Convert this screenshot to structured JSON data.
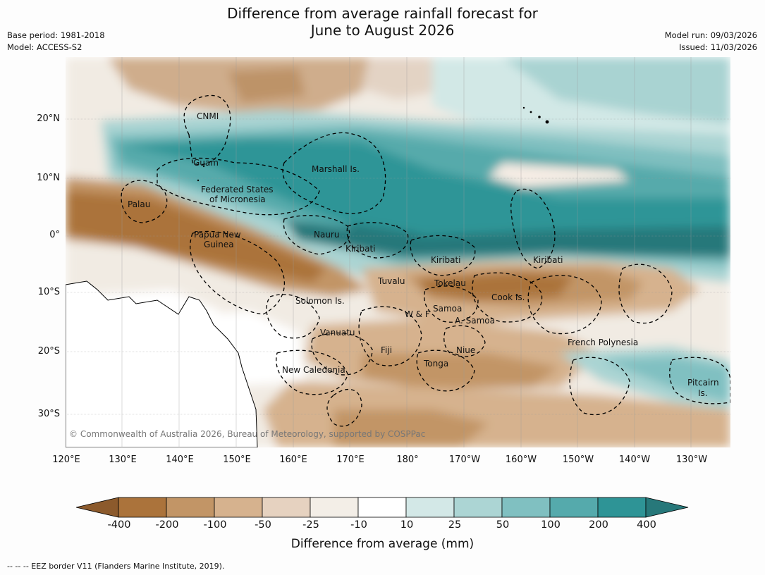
{
  "title": {
    "line1": "Difference from average rainfall forecast for",
    "line2": "June to August 2026"
  },
  "meta_left": {
    "base_period": "Base period: 1981-2018",
    "model": "Model: ACCESS-S2"
  },
  "meta_right": {
    "model_run": "Model run: 09/03/2026",
    "issued": "Issued: 11/03/2026"
  },
  "lat_labels": [
    "20°N",
    "10°N",
    "0°",
    "10°S",
    "20°S",
    "30°S"
  ],
  "lon_labels": [
    "120°E",
    "130°E",
    "140°E",
    "150°E",
    "160°E",
    "170°E",
    "180°",
    "170°W",
    "160°W",
    "150°W",
    "140°W",
    "130°W"
  ],
  "regions": {
    "cnmi": "CNMI",
    "guam": "Guam",
    "marshall": "Marshall Is.",
    "fsm_1": "Federated States",
    "fsm_2": "of Micronesia",
    "palau": "Palau",
    "png_1": "Papua New",
    "png_2": "Guinea",
    "nauru": "Nauru",
    "kiribati_w": "Kiribati",
    "kiribati_c": "Kiribati",
    "kiribati_e": "Kiribati",
    "tuvalu": "Tuvalu",
    "tokelau": "Tokelau",
    "cook": "Cook Is.",
    "solomon": "Solomon Is.",
    "wf": "W & F",
    "samoa": "Samoa",
    "asamoa": "A. Samoa",
    "vanuatu": "Vanuatu",
    "fiji": "Fiji",
    "niue": "Niue",
    "tonga": "Tonga",
    "french_polynesia": "French Polynesia",
    "new_caledonia": "New Caledonia",
    "pitcairn_1": "Pitcairn",
    "pitcairn_2": "Is."
  },
  "copyright": "© Commonwealth of Australia 2026, Bureau of Meteorology, supported by COSPPac",
  "colorbar": {
    "ticks": [
      "-400",
      "-200",
      "-100",
      "-50",
      "-25",
      "-10",
      "10",
      "25",
      "50",
      "100",
      "200",
      "400"
    ],
    "colors": [
      "#8c5a2c",
      "#ab733b",
      "#c29566",
      "#d6b28e",
      "#e6d2c0",
      "#f3eee7",
      "#ffffff",
      "#d3e8e7",
      "#acd5d4",
      "#80c0c1",
      "#55aaac",
      "#2e9496",
      "#27787a"
    ],
    "label": "Difference from average (mm)"
  },
  "footer": "--  --  -- EEZ border V11 (Flanders Marine Institute, 2019)."
}
